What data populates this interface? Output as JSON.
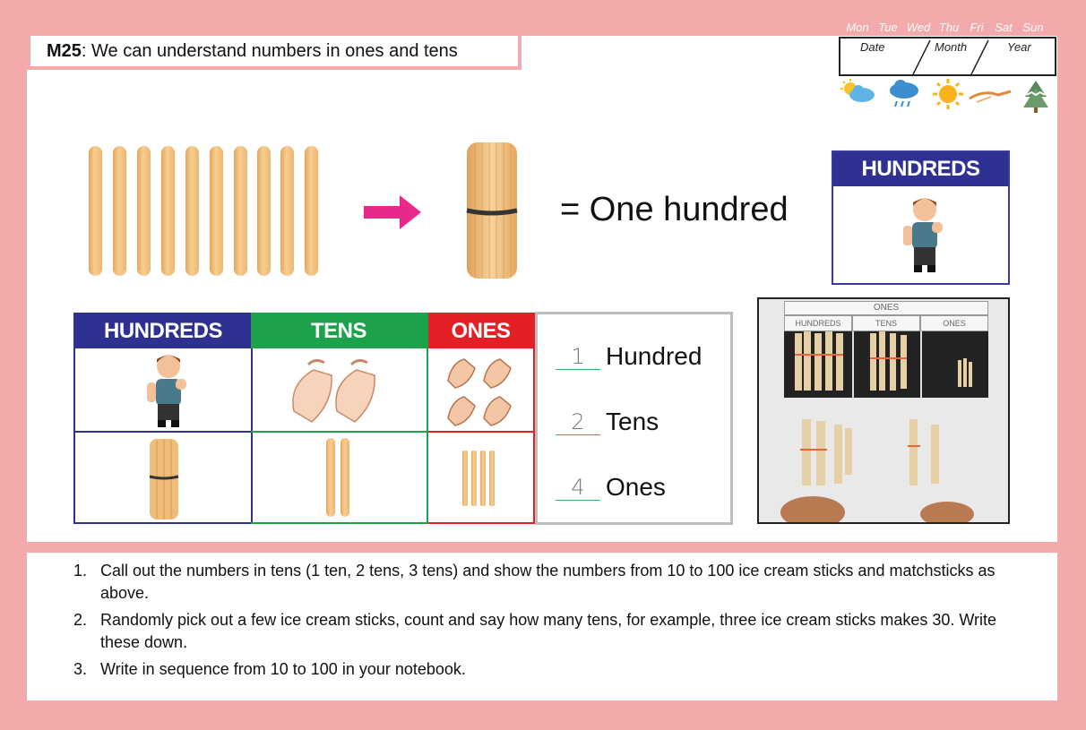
{
  "lesson": {
    "code": "M25",
    "title": ": We can understand numbers in ones and tens"
  },
  "calendar": {
    "days": [
      "Mon",
      "Tue",
      "Wed",
      "Thu",
      "Fri",
      "Sat",
      "Sun"
    ],
    "fields": [
      "Date",
      "Month",
      "Year"
    ]
  },
  "weather_icons": [
    "partly-cloudy-icon",
    "rain-cloud-icon",
    "sun-icon",
    "wind-icon",
    "snowy-tree-icon"
  ],
  "top_row": {
    "equals_text": "= One hundred",
    "card_header": "HUNDREDS"
  },
  "place_value": {
    "headers": [
      "HUNDREDS",
      "TENS",
      "ONES"
    ],
    "colors": {
      "hundreds": "#2e3192",
      "tens": "#1ba24a",
      "ones": "#e41f26"
    }
  },
  "answers": [
    {
      "value": "1",
      "label": "Hundred"
    },
    {
      "value": "2",
      "label": "Tens"
    },
    {
      "value": "4",
      "label": "Ones"
    }
  ],
  "photo": {
    "header": "ONES",
    "columns": [
      "HUNDREDS",
      "TENS",
      "ONES"
    ]
  },
  "instructions": [
    {
      "n": "1.",
      "text": "Call out the numbers in tens (1 ten, 2 tens, 3 tens) and show the numbers from 10 to 100 ice cream sticks and matchsticks as above."
    },
    {
      "n": "2.",
      "text": "Randomly pick out a few ice cream sticks, count and say how many tens, for example, three ice cream sticks makes 30. Write these down."
    },
    {
      "n": "3.",
      "text": "Write in sequence from 10 to 100 in your notebook."
    }
  ]
}
